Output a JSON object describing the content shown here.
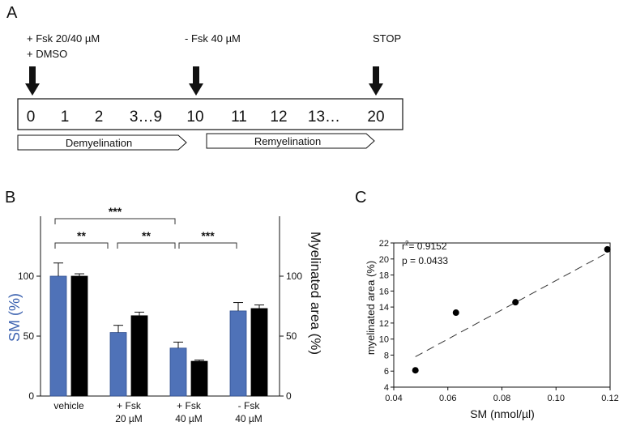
{
  "panels": {
    "a": "A",
    "b": "B",
    "c": "C"
  },
  "timeline": {
    "events": [
      {
        "line1": "+ Fsk 20/40 µM",
        "line2": "+ DMSO",
        "day": 0
      },
      {
        "line1": "- Fsk 40 µM",
        "line2": "",
        "day": 10
      },
      {
        "line1": "STOP",
        "line2": "",
        "day": 20
      }
    ],
    "days": [
      "0",
      "1",
      "2",
      "3…9",
      "10",
      "11",
      "12",
      "13…",
      "20"
    ],
    "phases": [
      "Demyelination",
      "Remyelination"
    ]
  },
  "colors": {
    "sm_bar": "#4f72b8",
    "myelin_bar": "#000000",
    "sm_axis_label": "#3d63b0",
    "dashed_fit": "#333333"
  },
  "chart_data": [
    {
      "type": "bar",
      "panel": "B",
      "categories": [
        {
          "line1": "vehicle",
          "line2": ""
        },
        {
          "line1": "+ Fsk",
          "line2": "20 µM"
        },
        {
          "line1": "+ Fsk",
          "line2": "40 µM"
        },
        {
          "line1": "- Fsk",
          "line2": "40 µM"
        }
      ],
      "series": [
        {
          "name": "SM (%)",
          "axis": "left",
          "values": [
            100,
            53,
            40,
            71
          ],
          "errors": [
            11,
            6,
            5,
            7
          ]
        },
        {
          "name": "Myelinated area (%)",
          "axis": "right",
          "values": [
            100,
            67,
            29,
            73
          ],
          "errors": [
            2,
            3,
            1,
            3
          ]
        }
      ],
      "ylabel_left": "SM (%)",
      "ylabel_right": "Myelinated area (%)",
      "ylim": [
        0,
        150
      ],
      "yticks": [
        0,
        50,
        100
      ],
      "significance": [
        {
          "from": 0,
          "to": 1,
          "label": "**"
        },
        {
          "from": 1,
          "to": 2,
          "label": "**"
        },
        {
          "from": 0,
          "to": 2,
          "label": "***"
        },
        {
          "from": 2,
          "to": 3,
          "label": "***"
        }
      ]
    },
    {
      "type": "scatter",
      "panel": "C",
      "x": [
        0.048,
        0.063,
        0.085,
        0.119
      ],
      "y": [
        6.1,
        13.3,
        14.6,
        21.2
      ],
      "xlabel": "SM (nmol/µl)",
      "ylabel": "myelinated area (%)",
      "xlim": [
        0.04,
        0.12
      ],
      "ylim": [
        4,
        22
      ],
      "xticks": [
        0.04,
        0.06,
        0.08,
        0.1,
        0.12
      ],
      "xtick_labels": [
        "0.04",
        "0.06",
        "0.08",
        "0.10",
        "0.12"
      ],
      "yticks": [
        4,
        6,
        8,
        10,
        12,
        14,
        16,
        18,
        20,
        22
      ],
      "fit": {
        "x_start": 0.048,
        "y_start": 7.8,
        "x_end": 0.118,
        "y_end": 20.6
      },
      "stats": {
        "r2_prefix": "r",
        "r2_sup": "2",
        "r2_value": "= 0.9152",
        "p": "p = 0.0433"
      }
    }
  ]
}
